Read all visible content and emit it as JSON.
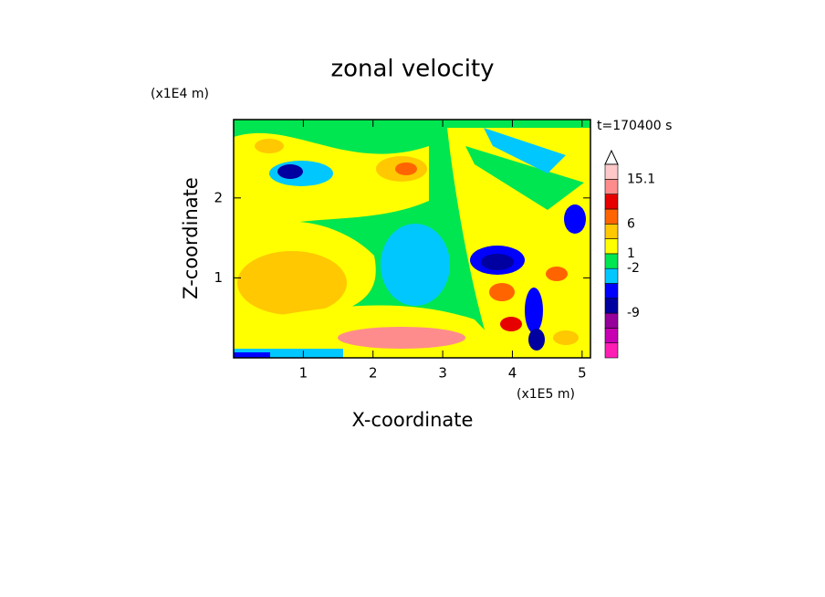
{
  "chart_data": {
    "type": "contour",
    "title": "zonal velocity",
    "x_label": "X-coordinate",
    "y_label": "Z-coordinate",
    "x_unit": "(x1E5 m)",
    "y_unit": "(x1E4 m)",
    "annotation": "t=170400 s",
    "xlim": [
      0,
      5.12
    ],
    "xticks": [
      1,
      2,
      3,
      4,
      5
    ],
    "ylim": [
      0,
      2.98
    ],
    "yticks": [
      1,
      2
    ],
    "colorbar": {
      "colors": [
        "#ff1eb4",
        "#c800b4",
        "#96009b",
        "#0000a0",
        "#0000ff",
        "#00c8ff",
        "#00e650",
        "#ffff00",
        "#ffc800",
        "#ff6400",
        "#e60000",
        "#ff8c8c",
        "#ffc8c8"
      ],
      "levels": [
        null,
        null,
        null,
        -9,
        null,
        null,
        -2,
        1,
        null,
        6,
        null,
        null,
        15.1,
        null
      ]
    }
  }
}
